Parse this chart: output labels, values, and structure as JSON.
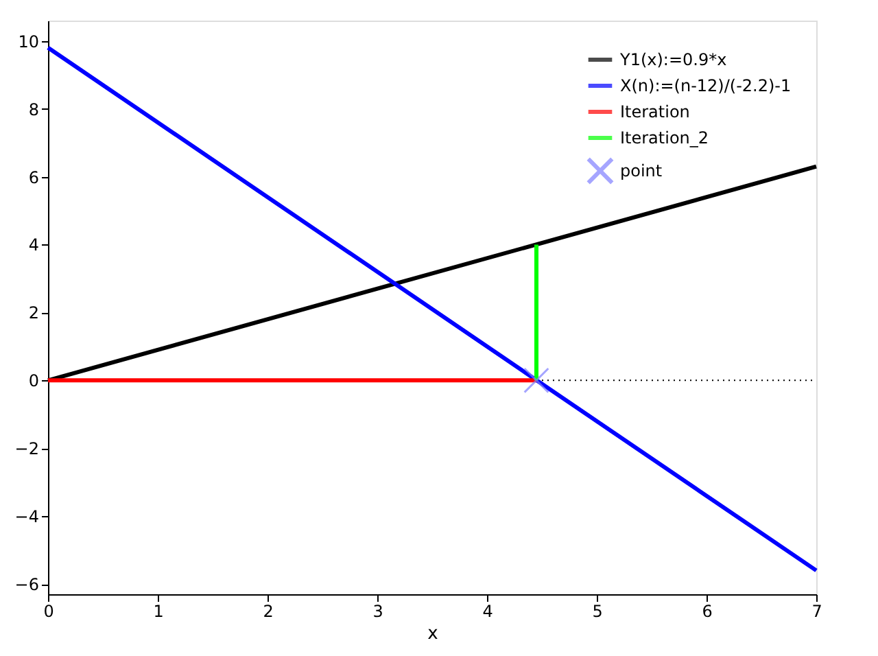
{
  "chart_data": {
    "type": "line",
    "xlabel": "x",
    "xlim": [
      0,
      7
    ],
    "xticks": [
      0,
      1,
      2,
      3,
      4,
      5,
      6,
      7
    ],
    "ylim": [
      -6.3,
      10.6
    ],
    "yticks": [
      -6,
      -4,
      -2,
      0,
      2,
      4,
      6,
      8,
      10
    ],
    "grid": false,
    "legend": "top right",
    "ref_lines": [
      {
        "axis": "y",
        "value": 0,
        "color": "#000000",
        "line_style": "dotted"
      }
    ],
    "series": [
      {
        "name": "Y1(x):=0.9*x",
        "color": "#000000",
        "x": [
          0,
          7
        ],
        "values": [
          0,
          6.3
        ]
      },
      {
        "name": "X(n):=(n-12)/(-2.2)-1",
        "color": "#0000ff",
        "x": [
          0,
          7
        ],
        "values": [
          9.8,
          -5.6
        ]
      },
      {
        "name": "Iteration",
        "color": "#ff0000",
        "x": [
          0,
          4.45
        ],
        "values": [
          0,
          0
        ]
      },
      {
        "name": "Iteration_2",
        "color": "#00ff00",
        "x": [
          4.45,
          4.45
        ],
        "values": [
          0,
          4.0
        ]
      },
      {
        "name": "point",
        "type": "scatter",
        "marker": "cross",
        "color": "#7f7fff",
        "x": [
          4.45
        ],
        "values": [
          0
        ]
      }
    ]
  }
}
